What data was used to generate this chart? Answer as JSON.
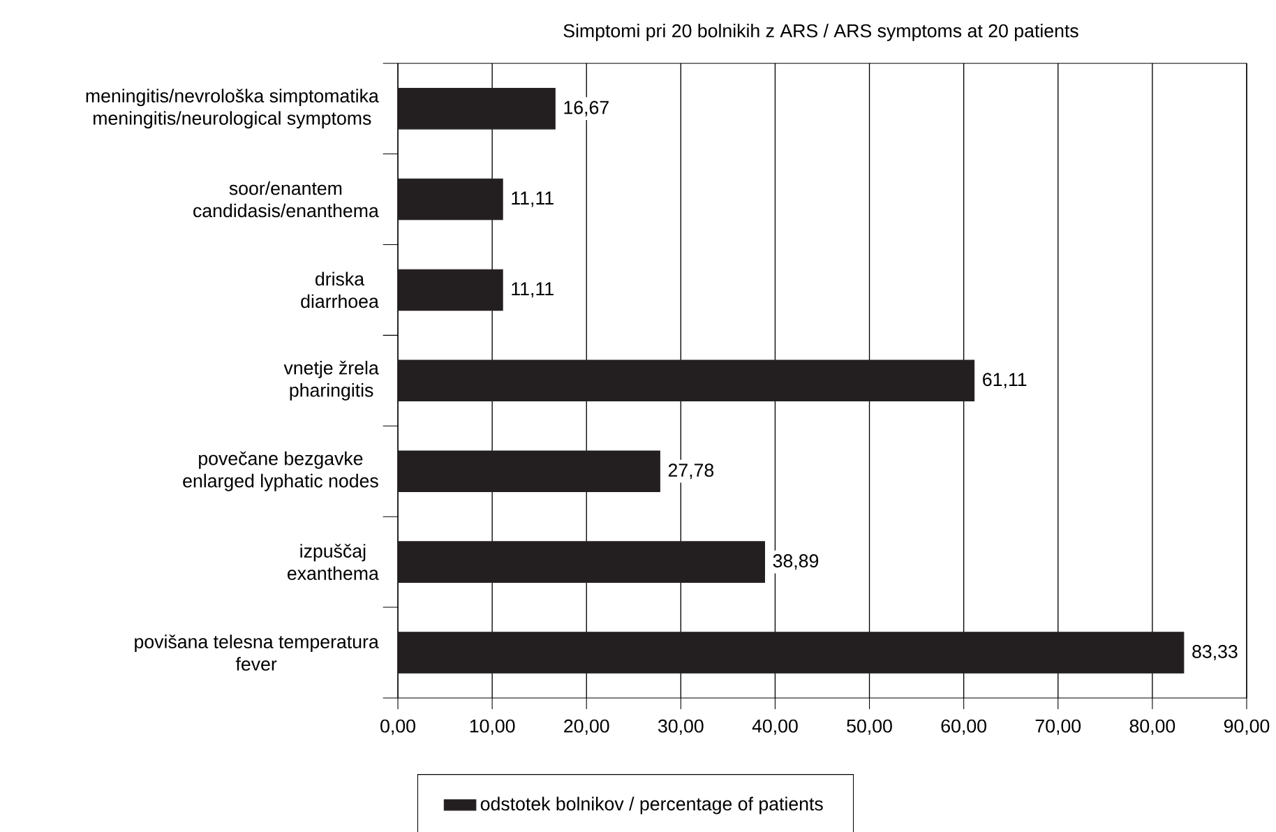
{
  "chart_data": {
    "type": "bar",
    "orientation": "horizontal",
    "title": "Simptomi pri 20 bolnikih z ARS / ARS symptoms at 20 patients",
    "categories": [
      "meningitis/nevrološka simptomatika meningitis/neurological symptoms",
      "soor/enantem candidasis/enanthema",
      "driska diarrhoea",
      "vnetje žrela pharingitis",
      "povečane bezgavke enlarged lyphatic nodes",
      "izpuščaj exanthema",
      "povišana telesna temperatura fever"
    ],
    "series": [
      {
        "name": "odstotek bolnikov / percentage of patients",
        "color": "#231f20",
        "values": [
          16.67,
          11.11,
          11.11,
          61.11,
          27.78,
          38.89,
          83.33
        ],
        "value_labels": [
          "16,67",
          "11,11",
          "11,11",
          "61,11",
          "27,78",
          "38,89",
          "83,33"
        ]
      }
    ],
    "xlim": [
      0,
      90
    ],
    "xticks": [
      {
        "value": 0,
        "label": "0,00"
      },
      {
        "value": 10,
        "label": "10,00"
      },
      {
        "value": 20,
        "label": "20,00"
      },
      {
        "value": 30,
        "label": "30,00"
      },
      {
        "value": 40,
        "label": "40,00"
      },
      {
        "value": 50,
        "label": "50,00"
      },
      {
        "value": 60,
        "label": "60,00"
      },
      {
        "value": 70,
        "label": "70,00"
      },
      {
        "value": 80,
        "label": "80,00"
      },
      {
        "value": 90,
        "label": "90,00"
      }
    ],
    "grid": "x",
    "legend": "bottom"
  }
}
